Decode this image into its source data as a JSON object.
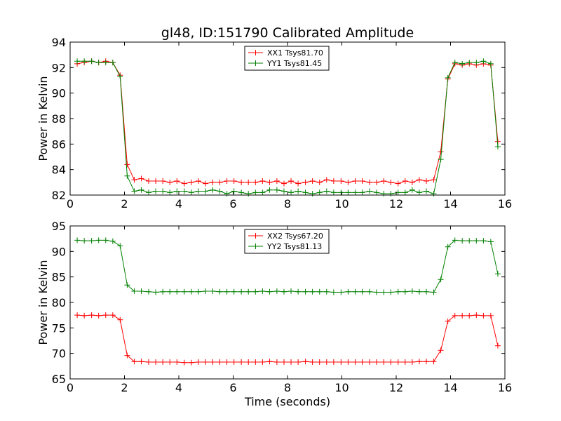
{
  "title": "gl48, ID:151790 Calibrated Amplitude",
  "chart_data": [
    {
      "type": "line",
      "xlabel": "",
      "ylabel": "Power in Kelvin",
      "xlim": [
        0,
        16
      ],
      "ylim": [
        82,
        94
      ],
      "xticks": [
        0,
        2,
        4,
        6,
        8,
        10,
        12,
        14,
        16
      ],
      "yticks": [
        82,
        84,
        86,
        88,
        90,
        92,
        94
      ],
      "legend_position": "top-center",
      "x": [
        0.26,
        0.52,
        0.79,
        1.05,
        1.31,
        1.57,
        1.84,
        2.1,
        2.36,
        2.62,
        2.89,
        3.15,
        3.41,
        3.67,
        3.93,
        4.2,
        4.46,
        4.72,
        4.98,
        5.25,
        5.51,
        5.77,
        6.03,
        6.3,
        6.56,
        6.82,
        7.08,
        7.34,
        7.61,
        7.87,
        8.13,
        8.39,
        8.66,
        8.92,
        9.18,
        9.44,
        9.7,
        9.97,
        10.23,
        10.49,
        10.75,
        11.02,
        11.28,
        11.54,
        11.8,
        12.07,
        12.33,
        12.59,
        12.85,
        13.11,
        13.38,
        13.64,
        13.9,
        14.16,
        14.43,
        14.69,
        14.95,
        15.21,
        15.48,
        15.74
      ],
      "series": [
        {
          "name": "XX1 Tsys81.70",
          "color": "#ff0000",
          "values": [
            92.3,
            92.4,
            92.5,
            92.4,
            92.5,
            92.4,
            91.4,
            84.4,
            83.2,
            83.3,
            83.1,
            83.1,
            83.1,
            83.0,
            83.1,
            82.9,
            83.0,
            83.1,
            82.9,
            83.0,
            83.0,
            83.1,
            83.1,
            83.0,
            83.0,
            83.0,
            83.1,
            83.0,
            83.1,
            82.9,
            83.1,
            82.9,
            83.0,
            83.1,
            83.0,
            83.2,
            83.1,
            83.1,
            83.0,
            83.1,
            83.1,
            83.0,
            83.0,
            83.1,
            83.0,
            82.9,
            83.1,
            83.0,
            83.2,
            83.1,
            83.2,
            85.4,
            91.1,
            92.3,
            92.2,
            92.3,
            92.2,
            92.3,
            92.2,
            86.2
          ]
        },
        {
          "name": "YY1 Tsys81.45",
          "color": "#008000",
          "values": [
            92.5,
            92.5,
            92.5,
            92.4,
            92.4,
            92.4,
            91.3,
            83.5,
            82.3,
            82.4,
            82.2,
            82.3,
            82.3,
            82.2,
            82.3,
            82.3,
            82.2,
            82.3,
            82.3,
            82.4,
            82.3,
            82.1,
            82.3,
            82.2,
            82.1,
            82.2,
            82.2,
            82.4,
            82.4,
            82.3,
            82.2,
            82.3,
            82.2,
            82.1,
            82.2,
            82.3,
            82.2,
            82.2,
            82.2,
            82.2,
            82.2,
            82.3,
            82.2,
            82.1,
            82.1,
            82.2,
            82.2,
            82.4,
            82.2,
            82.3,
            82.1,
            84.8,
            91.2,
            92.4,
            92.3,
            92.4,
            92.4,
            92.5,
            92.3,
            85.8
          ]
        }
      ]
    },
    {
      "type": "line",
      "xlabel": "Time (seconds)",
      "ylabel": "Power in Kelvin",
      "xlim": [
        0,
        16
      ],
      "ylim": [
        65,
        95
      ],
      "xticks": [
        0,
        2,
        4,
        6,
        8,
        10,
        12,
        14,
        16
      ],
      "yticks": [
        65,
        70,
        75,
        80,
        85,
        90,
        95
      ],
      "legend_position": "top-center",
      "x": [
        0.26,
        0.52,
        0.79,
        1.05,
        1.31,
        1.57,
        1.84,
        2.1,
        2.36,
        2.62,
        2.89,
        3.15,
        3.41,
        3.67,
        3.93,
        4.2,
        4.46,
        4.72,
        4.98,
        5.25,
        5.51,
        5.77,
        6.03,
        6.3,
        6.56,
        6.82,
        7.08,
        7.34,
        7.61,
        7.87,
        8.13,
        8.39,
        8.66,
        8.92,
        9.18,
        9.44,
        9.7,
        9.97,
        10.23,
        10.49,
        10.75,
        11.02,
        11.28,
        11.54,
        11.8,
        12.07,
        12.33,
        12.59,
        12.85,
        13.11,
        13.38,
        13.64,
        13.9,
        14.16,
        14.43,
        14.69,
        14.95,
        15.21,
        15.48,
        15.74
      ],
      "series": [
        {
          "name": "XX2 Tsys67.20",
          "color": "#ff0000",
          "values": [
            77.5,
            77.4,
            77.5,
            77.4,
            77.5,
            77.5,
            76.6,
            69.6,
            68.4,
            68.4,
            68.3,
            68.3,
            68.3,
            68.3,
            68.3,
            68.2,
            68.2,
            68.3,
            68.3,
            68.3,
            68.3,
            68.3,
            68.3,
            68.3,
            68.3,
            68.3,
            68.3,
            68.4,
            68.3,
            68.3,
            68.3,
            68.3,
            68.4,
            68.3,
            68.3,
            68.3,
            68.3,
            68.3,
            68.3,
            68.3,
            68.3,
            68.3,
            68.3,
            68.3,
            68.3,
            68.3,
            68.3,
            68.3,
            68.4,
            68.4,
            68.4,
            70.6,
            76.3,
            77.4,
            77.4,
            77.4,
            77.5,
            77.4,
            77.4,
            71.5
          ]
        },
        {
          "name": "YY2 Tsys81.13",
          "color": "#008000",
          "values": [
            92.2,
            92.1,
            92.1,
            92.2,
            92.2,
            92.0,
            91.1,
            83.4,
            82.2,
            82.2,
            82.1,
            82.0,
            82.1,
            82.1,
            82.1,
            82.1,
            82.1,
            82.1,
            82.2,
            82.2,
            82.1,
            82.1,
            82.1,
            82.1,
            82.1,
            82.1,
            82.2,
            82.1,
            82.2,
            82.1,
            82.2,
            82.1,
            82.1,
            82.1,
            82.1,
            82.1,
            82.0,
            82.0,
            82.1,
            82.1,
            82.1,
            82.1,
            82.0,
            82.0,
            82.0,
            82.1,
            82.1,
            82.2,
            82.1,
            82.1,
            82.0,
            84.5,
            90.9,
            92.2,
            92.1,
            92.1,
            92.1,
            92.1,
            91.9,
            85.6
          ]
        }
      ]
    }
  ]
}
